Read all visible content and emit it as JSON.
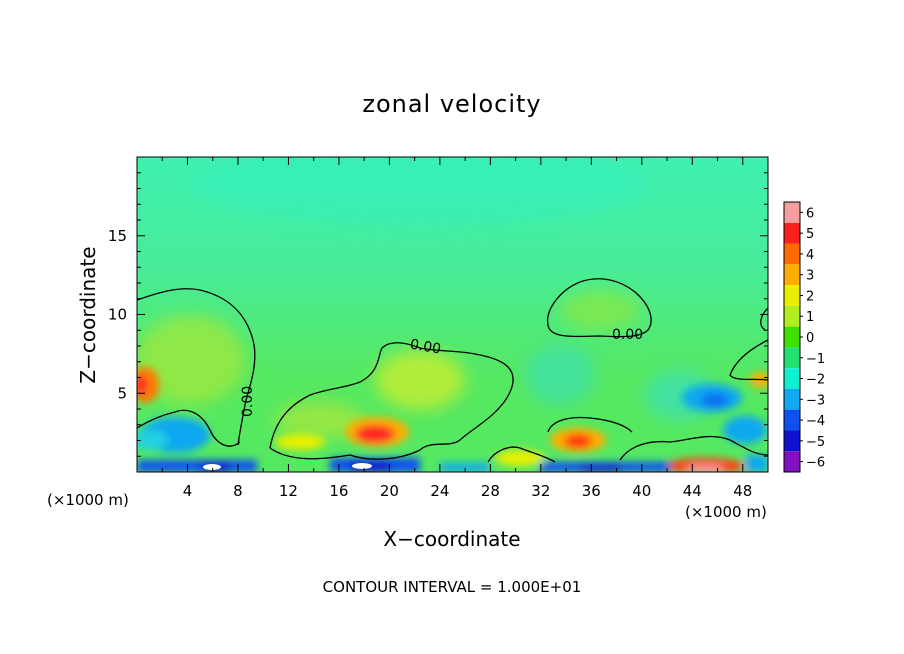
{
  "chart_data": {
    "type": "heatmap",
    "title": "zonal velocity",
    "xlabel": "X−coordinate",
    "ylabel": "Z−coordinate",
    "x_unit_left": "(×1000 m)",
    "x_unit_right": "(×1000 m)",
    "xlim": [
      0,
      50
    ],
    "ylim": [
      0,
      20
    ],
    "x_ticks": [
      4,
      8,
      12,
      16,
      20,
      24,
      28,
      32,
      36,
      40,
      44,
      48
    ],
    "x_tick_labels": [
      "4",
      "8",
      "12",
      "16",
      "20",
      "24",
      "28",
      "32",
      "36",
      "40",
      "44",
      "48"
    ],
    "y_ticks": [
      5,
      10,
      15
    ],
    "y_tick_labels": [
      "5",
      "10",
      "15"
    ],
    "colorbar": {
      "levels": [
        6,
        5,
        4,
        3,
        2,
        1,
        0,
        -1,
        -2,
        -3,
        -4,
        -5,
        -6
      ],
      "labels": [
        "6",
        "5",
        "4",
        "3",
        "2",
        "1",
        "0",
        "−1",
        "−2",
        "−3",
        "−4",
        "−5",
        "−6"
      ],
      "colors": [
        "#f4a0a0",
        "#ff2020",
        "#ff6a00",
        "#ffae00",
        "#e8f000",
        "#b0ee20",
        "#40e000",
        "#20e070",
        "#10f0d0",
        "#10a8f0",
        "#1050f0",
        "#1010d0",
        "#8010c0"
      ]
    },
    "field": {
      "background": "#55e861",
      "upper_band": "#3ff0b0",
      "features": [
        {
          "x": 18.8,
          "z": 2.3,
          "v": 4.5
        },
        {
          "x": 35.0,
          "z": 2.0,
          "v": 4.0
        },
        {
          "x": 0.5,
          "z": 5.3,
          "v": 3.5
        },
        {
          "x": 45.2,
          "z": 0.4,
          "v": 5.0
        },
        {
          "x": 23.5,
          "z": 5.0,
          "v": 2.0
        },
        {
          "x": 5.0,
          "z": 7.0,
          "v": 1.5
        },
        {
          "x": 2.0,
          "z": 1.5,
          "v": -3.0
        },
        {
          "x": 9.0,
          "z": 0.5,
          "v": -4.5
        },
        {
          "x": 22.0,
          "z": 0.5,
          "v": -4.0
        },
        {
          "x": 35.0,
          "z": 0.3,
          "v": -4.5
        },
        {
          "x": 45.0,
          "z": 4.5,
          "v": -3.0
        },
        {
          "x": 37.0,
          "z": 6.0,
          "v": -2.0
        }
      ]
    },
    "contours": [
      {
        "label": "0.00",
        "label_at": [
          8.5,
          4.5
        ]
      },
      {
        "label": "0.00",
        "label_at": [
          23.0,
          8.0
        ]
      },
      {
        "label": "0.00",
        "label_at": [
          39.0,
          8.7
        ]
      }
    ]
  },
  "footer": {
    "contour_interval": "CONTOUR INTERVAL = 1.000E+01"
  }
}
